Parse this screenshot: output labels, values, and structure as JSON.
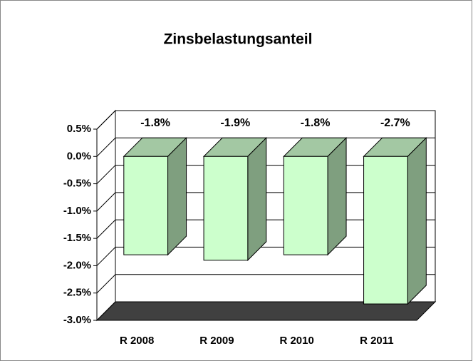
{
  "chart_data": {
    "type": "bar3d",
    "title": "Zinsbelastungsanteil",
    "categories": [
      "R 2008",
      "R 2009",
      "R 2010",
      "R 2011"
    ],
    "values": [
      -1.8,
      -1.9,
      -1.8,
      -2.7
    ],
    "value_labels": [
      "-1.8%",
      "-1.9%",
      "-1.8%",
      "-2.7%"
    ],
    "color": "#ccffcc",
    "ylim": [
      -3.0,
      0.5
    ],
    "yticks": [
      {
        "value": 0.5,
        "label": "0.5%"
      },
      {
        "value": 0.0,
        "label": "0.0%"
      },
      {
        "value": -0.5,
        "label": "-0.5%"
      },
      {
        "value": -1.0,
        "label": "-1.0%"
      },
      {
        "value": -1.5,
        "label": "-1.5%"
      },
      {
        "value": -2.0,
        "label": "-2.0%"
      },
      {
        "value": -2.5,
        "label": "-2.5%"
      },
      {
        "value": -3.0,
        "label": "-3.0%"
      }
    ],
    "grid": true
  }
}
